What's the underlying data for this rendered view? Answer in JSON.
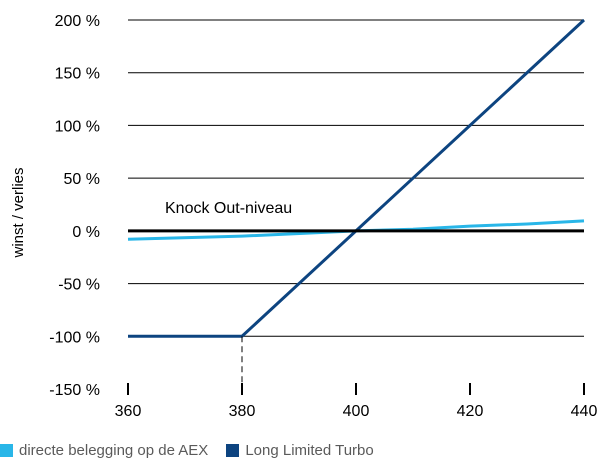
{
  "chart_data": {
    "type": "line",
    "xlabel": "",
    "ylabel": "winst / verlies",
    "xlim": [
      360,
      440
    ],
    "ylim": [
      -150,
      200
    ],
    "xticks": [
      "360",
      "380",
      "400",
      "420",
      "440"
    ],
    "yticks": [
      "200 %",
      "150 %",
      "100 %",
      "50 %",
      "0 %",
      "-50 %",
      "-100 %",
      "-150 %"
    ],
    "grid": true,
    "legend_position": "bottom-left",
    "series": [
      {
        "name": "directe belegging op de AEX",
        "color": "#29b6e8",
        "x": [
          360,
          380,
          400,
          410,
          420,
          430,
          440
        ],
        "y": [
          -8,
          -5,
          0,
          1.5,
          4.5,
          6.5,
          9.5
        ]
      },
      {
        "name": "Long Limited Turbo",
        "color": "#0d4480",
        "x": [
          360,
          380,
          440
        ],
        "y": [
          -100,
          -100,
          200
        ]
      }
    ],
    "annotations": [
      {
        "text": "Knock Out-niveau",
        "y": 0,
        "knock_out_x": 380
      }
    ]
  },
  "colors": {
    "grid": "#000000",
    "knockout_line": "#000000"
  }
}
